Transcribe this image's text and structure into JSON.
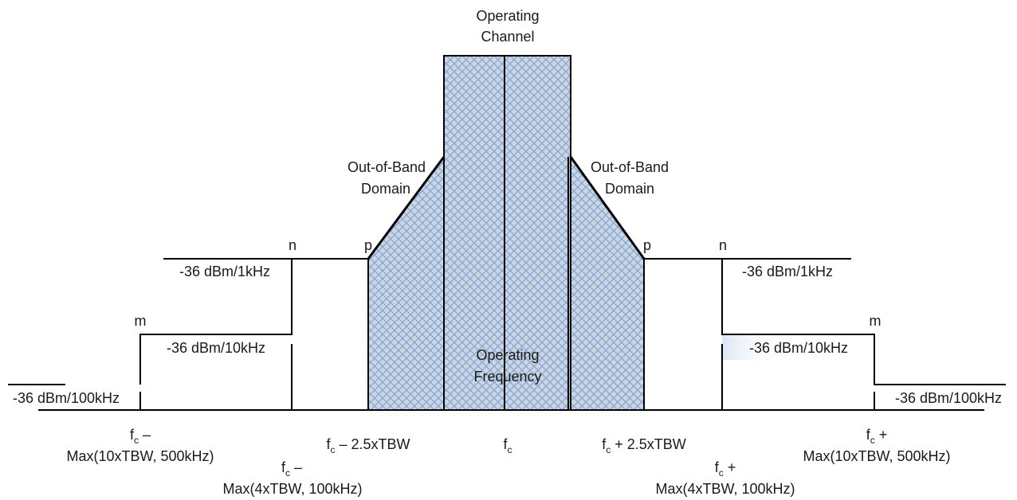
{
  "title": {
    "line1": "Operating",
    "line2": "Channel"
  },
  "center": {
    "line1": "Operating",
    "line2": "Frequency"
  },
  "oob": {
    "line1": "Out-of-Band",
    "line2": "Domain"
  },
  "points": {
    "n": "n",
    "p": "p",
    "m": "m"
  },
  "levels": {
    "khz1": "-36 dBm/1kHz",
    "khz10": "-36 dBm/10kHz",
    "khz100": "-36 dBm/100kHz"
  },
  "freq": {
    "f": "f",
    "c": "c",
    "minus": " –",
    "plus": " +",
    "minus_25": " – 2.5xTBW",
    "plus_25": " + 2.5xTBW",
    "max10": "Max(10xTBW, 500kHz)",
    "max4": "Max(4xTBW, 100kHz)"
  },
  "colors": {
    "fill": "#cdd5e0",
    "hatch": "#7fa6d8",
    "line": "#000000"
  }
}
